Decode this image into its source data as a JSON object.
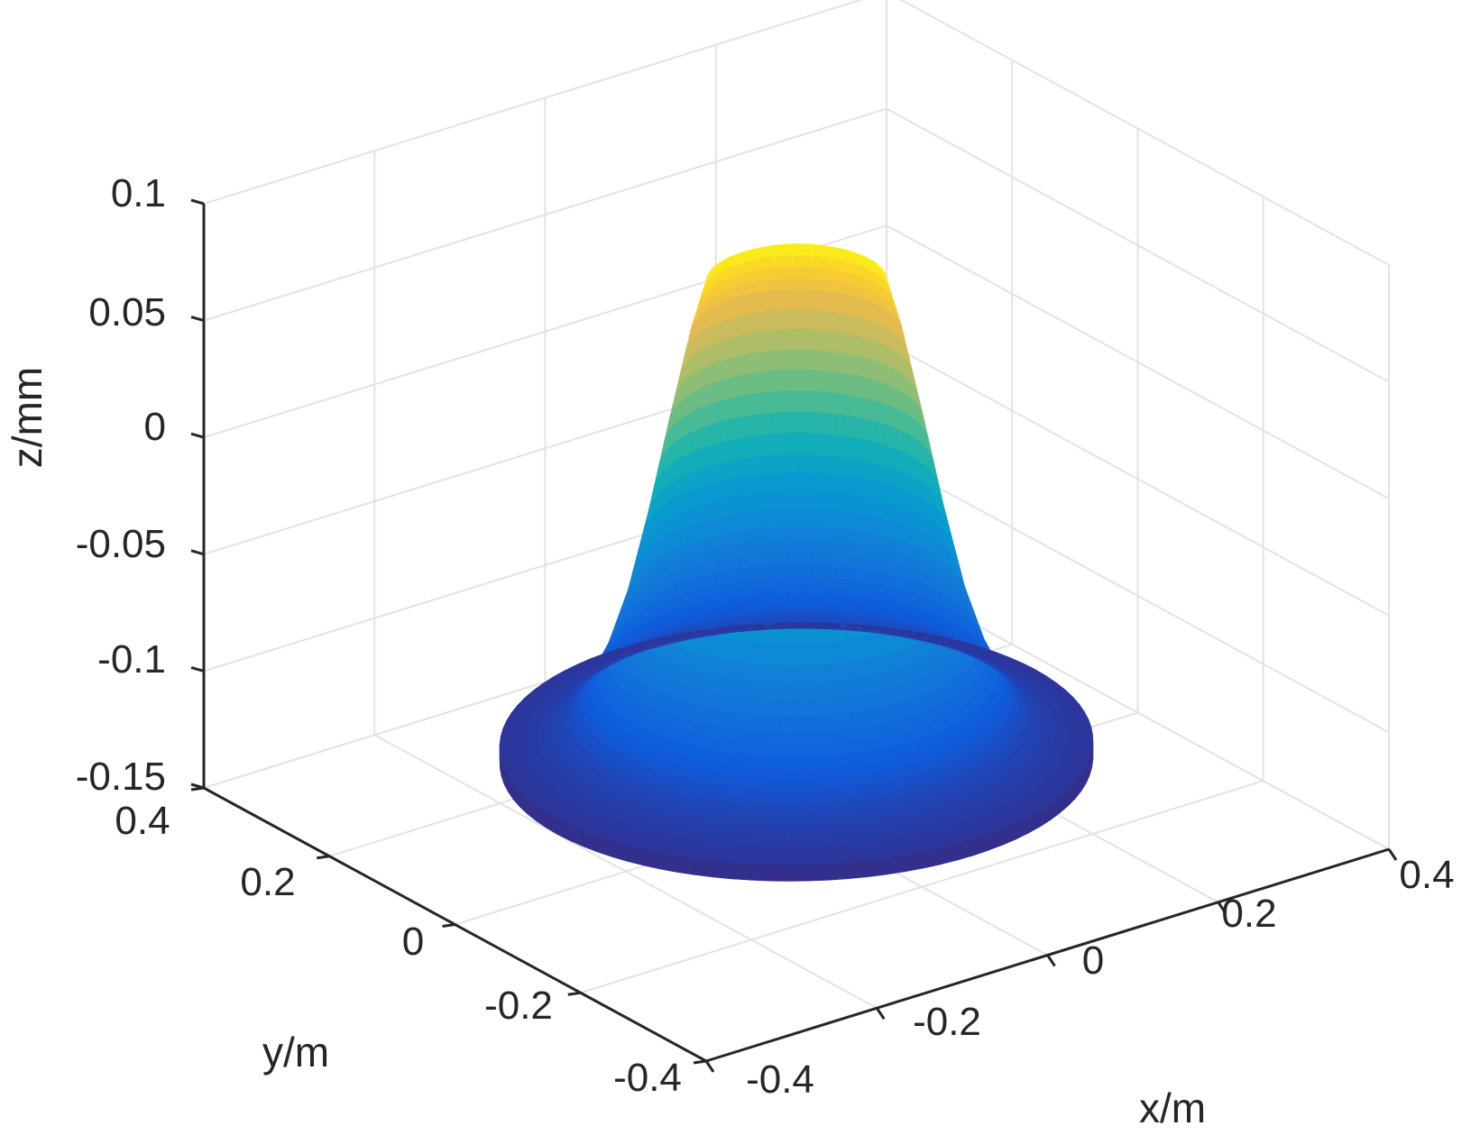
{
  "chart_data": {
    "type": "surface",
    "title": "",
    "xlabel": "x/m",
    "ylabel": "y/m",
    "zlabel": "z/mm",
    "xlim": [
      -0.4,
      0.4
    ],
    "ylim": [
      -0.4,
      0.4
    ],
    "zlim": [
      -0.15,
      0.1
    ],
    "x_ticks": [
      -0.4,
      -0.2,
      0,
      0.2,
      0.4
    ],
    "y_ticks": [
      -0.4,
      -0.2,
      0,
      0.2,
      0.4
    ],
    "z_ticks": [
      -0.15,
      -0.1,
      -0.05,
      0,
      0.05,
      0.1
    ],
    "x_tick_labels": [
      "-0.4",
      "-0.2",
      "0",
      "0.2",
      "0.4"
    ],
    "y_tick_labels": [
      "-0.4",
      "-0.2",
      "0",
      "0.2",
      "0.4"
    ],
    "z_tick_labels": [
      "-0.15",
      "-0.1",
      "-0.05",
      "0",
      "0.05",
      "0.1"
    ],
    "grid": true,
    "colormap": "parula",
    "surface_profile": {
      "description_axis": "radius r in m vs height z in mm (axisymmetric)",
      "r": [
        0.0,
        0.06,
        0.07,
        0.085,
        0.1,
        0.12,
        0.14,
        0.16,
        0.18,
        0.2,
        0.22,
        0.24,
        0.26,
        0.28
      ],
      "z": [
        0.055,
        0.055,
        0.083,
        0.08,
        0.058,
        0.02,
        -0.02,
        -0.055,
        -0.08,
        -0.097,
        -0.108,
        -0.113,
        -0.116,
        -0.118
      ],
      "outer_radius": 0.28,
      "rim_bottom_z": -0.125
    }
  }
}
